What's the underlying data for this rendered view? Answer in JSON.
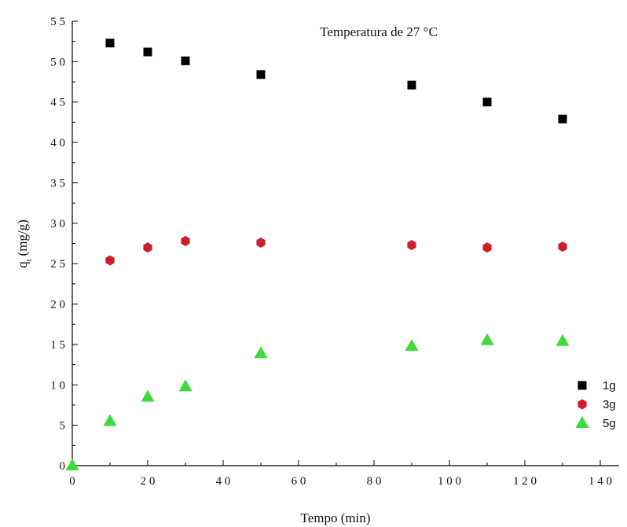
{
  "chart_data": {
    "type": "scatter",
    "title": "Temperatura de 27 °C",
    "xlabel": "Tempo (min)",
    "ylabel_main": "q",
    "ylabel_sub": "t",
    "ylabel_unit": "(mg/g)",
    "xlim": [
      0,
      145
    ],
    "ylim": [
      0,
      55
    ],
    "xticks": [
      0,
      20,
      40,
      60,
      80,
      100,
      120,
      140
    ],
    "yticks": [
      0,
      5,
      10,
      15,
      20,
      25,
      30,
      35,
      40,
      45,
      50,
      55
    ],
    "grid": false,
    "legend_position": "bottom-right",
    "series": [
      {
        "name": "1g",
        "marker": "square",
        "color": "#000000",
        "x": [
          10,
          20,
          30,
          50,
          90,
          110,
          130
        ],
        "y": [
          52.3,
          51.2,
          50.1,
          48.4,
          47.1,
          45.0,
          42.9
        ]
      },
      {
        "name": "3g",
        "marker": "hexagon",
        "color": "#cc1f2a",
        "x": [
          10,
          20,
          30,
          50,
          90,
          110,
          130
        ],
        "y": [
          25.4,
          27.0,
          27.8,
          27.6,
          27.3,
          27.0,
          27.1
        ]
      },
      {
        "name": "5g",
        "marker": "triangle",
        "color": "#3ddc3a",
        "x": [
          0,
          10,
          20,
          30,
          50,
          90,
          110,
          130
        ],
        "y": [
          0,
          5.5,
          8.5,
          9.8,
          13.9,
          14.8,
          15.5,
          15.4
        ]
      }
    ]
  }
}
